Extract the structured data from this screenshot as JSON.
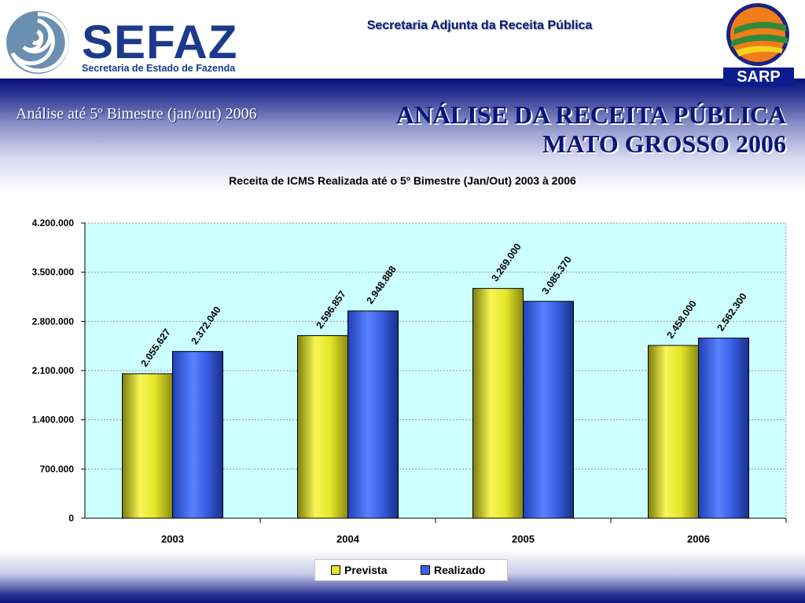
{
  "header": {
    "sefaz_logo_text": "SEFAZ",
    "sefaz_logo_subtitle": "Secretaria de Estado de Fazenda",
    "center_title": "Secretaria Adjunta da Receita Pública",
    "sarp_label": "SARP"
  },
  "band": {
    "left_subtitle": "Análise até 5º Bimestre (jan/out) 2006",
    "title_line1": "ANÁLISE DA RECEITA PÚBLICA",
    "title_line2": "MATO GROSSO 2006"
  },
  "colors": {
    "prevista": "#e2e22c",
    "realizado": "#3a62e8",
    "plot_bg": "#ccffff",
    "band_dark": "#07107a"
  },
  "chart_data": {
    "type": "bar",
    "title": "Receita de ICMS Realizada até o 5º Bimestre (Jan/Out) 2003 à 2006",
    "categories": [
      "2003",
      "2004",
      "2005",
      "2006"
    ],
    "series": [
      {
        "name": "Prevista",
        "values": [
          2055627,
          2596857,
          3269000,
          2458000
        ],
        "labels": [
          "2.055.627",
          "2.596.857",
          "3.269.000",
          "2.458.000"
        ]
      },
      {
        "name": "Realizado",
        "values": [
          2372040,
          2948888,
          3085370,
          2562300
        ],
        "labels": [
          "2.372.040",
          "2.948.888",
          "3.085.370",
          "2.562.300"
        ]
      }
    ],
    "ylim": [
      0,
      4200000
    ],
    "yticks": [
      0,
      700000,
      1400000,
      2100000,
      2800000,
      3500000,
      4200000
    ],
    "ytick_labels": [
      "0",
      "700.000",
      "1.400.000",
      "2.100.000",
      "2.800.000",
      "3.500.000",
      "4.200.000"
    ],
    "xlabel": "",
    "ylabel": "",
    "grid": true,
    "legend": "bottom"
  }
}
